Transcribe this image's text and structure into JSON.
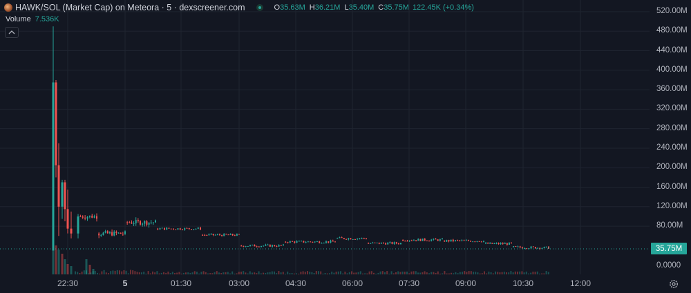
{
  "legend": {
    "title": "HAWK/SOL (Market Cap) on Meteora · 5 · dexscreener.com",
    "open_key": "O",
    "open": "35.63M",
    "high_key": "H",
    "high": "36.21M",
    "low_key": "L",
    "low": "35.40M",
    "close_key": "C",
    "close": "35.75M",
    "change": "122.45K (+0.34%)"
  },
  "volume": {
    "label": "Volume",
    "value": "7.536K"
  },
  "price_axis": {
    "labels": [
      "520.00M",
      "480.00M",
      "440.00M",
      "400.00M",
      "360.00M",
      "320.00M",
      "280.00M",
      "240.00M",
      "200.00M",
      "160.00M",
      "120.00M",
      "80.00M",
      "0.0000"
    ],
    "current_price": "35.75M"
  },
  "time_axis": {
    "labels": [
      {
        "text": "22:30",
        "bold": false
      },
      {
        "text": "5",
        "bold": true
      },
      {
        "text": "01:30",
        "bold": false
      },
      {
        "text": "03:00",
        "bold": false
      },
      {
        "text": "04:30",
        "bold": false
      },
      {
        "text": "06:00",
        "bold": false
      },
      {
        "text": "07:30",
        "bold": false
      },
      {
        "text": "09:00",
        "bold": false
      },
      {
        "text": "10:30",
        "bold": false
      },
      {
        "text": "12:00",
        "bold": false
      }
    ]
  },
  "icons": {
    "settings": "gear-icon",
    "collapse": "chevron-up-icon",
    "pair": "token-pair-icon"
  },
  "colors": {
    "up": "#26a69a",
    "down": "#ef5350",
    "background": "#131722",
    "grid": "#1f2430"
  },
  "chart_data": {
    "type": "candlestick",
    "title": "HAWK/SOL (Market Cap) on Meteora · 5 · dexscreener.com",
    "interval": "5",
    "ylim": [
      0,
      520000000
    ],
    "yticks": [
      80000000,
      120000000,
      160000000,
      200000000,
      240000000,
      280000000,
      320000000,
      360000000,
      400000000,
      440000000,
      480000000,
      520000000
    ],
    "last_close": 35750000,
    "series": [
      {
        "name": "Market Cap",
        "type": "candlestick",
        "points": [
          {
            "x": "22:20",
            "o": 30,
            "h": 490,
            "l": 30,
            "c": 375
          },
          {
            "x": "22:25",
            "o": 375,
            "h": 380,
            "l": 180,
            "c": 205
          },
          {
            "x": "22:30",
            "o": 205,
            "h": 250,
            "l": 60,
            "c": 120
          },
          {
            "x": "22:35",
            "o": 120,
            "h": 175,
            "l": 95,
            "c": 170
          },
          {
            "x": "22:40",
            "o": 170,
            "h": 175,
            "l": 90,
            "c": 115
          },
          {
            "x": "22:45",
            "o": 115,
            "h": 155,
            "l": 65,
            "c": 75
          },
          {
            "x": "22:50",
            "o": 75,
            "h": 110,
            "l": 55,
            "c": 65
          },
          {
            "x": "23:00",
            "o": 65,
            "h": 105,
            "l": 55,
            "c": 100
          },
          {
            "x": "23:30",
            "o": 100,
            "h": 102,
            "l": 60,
            "c": 65
          },
          {
            "x": "00:00",
            "o": 65,
            "h": 90,
            "l": 60,
            "c": 88
          },
          {
            "x": "01:00",
            "o": 88,
            "h": 90,
            "l": 72,
            "c": 75
          },
          {
            "x": "02:00",
            "o": 75,
            "h": 78,
            "l": 60,
            "c": 62
          },
          {
            "x": "03:00",
            "o": 62,
            "h": 64,
            "l": 38,
            "c": 40
          },
          {
            "x": "04:00",
            "o": 40,
            "h": 52,
            "l": 35,
            "c": 48
          },
          {
            "x": "05:00",
            "o": 48,
            "h": 58,
            "l": 42,
            "c": 55
          },
          {
            "x": "06:00",
            "o": 55,
            "h": 56,
            "l": 42,
            "c": 45
          },
          {
            "x": "07:00",
            "o": 45,
            "h": 54,
            "l": 44,
            "c": 52
          },
          {
            "x": "08:00",
            "o": 52,
            "h": 53,
            "l": 48,
            "c": 50
          },
          {
            "x": "09:00",
            "o": 50,
            "h": 50,
            "l": 42,
            "c": 44
          },
          {
            "x": "10:00",
            "o": 44,
            "h": 45,
            "l": 35,
            "c": 37
          },
          {
            "x": "11:10",
            "o": 35.63,
            "h": 36.21,
            "l": 35.4,
            "c": 35.75
          }
        ]
      }
    ],
    "volume_series": {
      "name": "Volume",
      "last_value": "7.536K"
    }
  }
}
